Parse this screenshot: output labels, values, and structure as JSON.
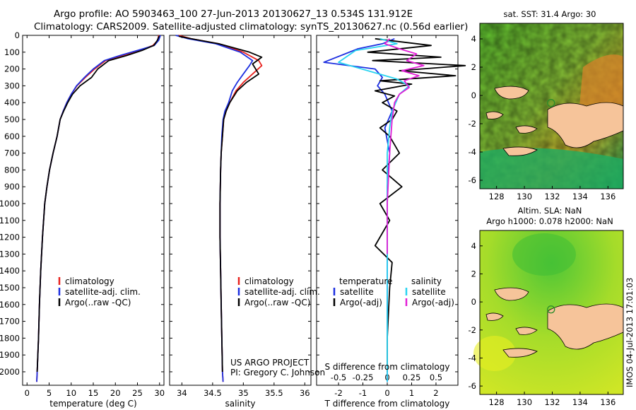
{
  "header": {
    "line1": "Argo profile: AO 5903463_100 27-Jun-2013 20130627_13 0.534S 131.912E",
    "line2": "Climatology: CARS2009. Satellite-adjusted climatology: synTS_20130627.nc (0.56d earlier)"
  },
  "credits": {
    "project": "US ARGO PROJECT",
    "pi": "PI: Gregory C. Johnson",
    "stamp": "IMOS 04-Jul-2013 17:01:03"
  },
  "colors": {
    "climatology": "#e8221e",
    "satellite": "#1d2fe0",
    "argo": "#000000",
    "sat_salinity": "#29d3f0",
    "argo_salinity": "#e21fd6",
    "land": "#f6c49a"
  },
  "chart_data": [
    {
      "type": "line",
      "id": "temperature",
      "xlabel": "temperature (deg C)",
      "xlim": [
        -1,
        31
      ],
      "xticks": [
        0,
        5,
        10,
        15,
        20,
        25,
        30
      ],
      "ylim": [
        2080,
        0
      ],
      "yticks": [
        0,
        100,
        200,
        300,
        400,
        500,
        600,
        700,
        800,
        900,
        1000,
        1100,
        1200,
        1300,
        1400,
        1500,
        1600,
        1700,
        1800,
        1900,
        2000
      ],
      "legend": [
        "climatology",
        "satellite-adj. clim.",
        "Argo(..raw -QC)"
      ],
      "series": [
        {
          "name": "climatology",
          "color": "#e8221e",
          "x": [
            29.8,
            29.6,
            28.5,
            25.5,
            21.5,
            17.8,
            15.3,
            13.2,
            11.3,
            10.0,
            9.0,
            8.2,
            7.5,
            6.8,
            5.9,
            5.1,
            4.5,
            4.0,
            3.5,
            3.1,
            2.8,
            2.6,
            2.3,
            2.2
          ],
          "y": [
            0,
            30,
            60,
            90,
            120,
            150,
            200,
            250,
            300,
            350,
            400,
            450,
            500,
            600,
            700,
            800,
            900,
            1000,
            1200,
            1400,
            1600,
            1800,
            2000,
            2060
          ]
        },
        {
          "name": "satellite-adj. clim.",
          "color": "#1d2fe0",
          "x": [
            30.2,
            29.8,
            28.8,
            25.0,
            21.0,
            17.5,
            15.0,
            13.0,
            11.2,
            10.0,
            9.0,
            8.2,
            7.5,
            6.8,
            5.9,
            5.1,
            4.5,
            4.0,
            3.5,
            3.1,
            2.8,
            2.6,
            2.3,
            2.2
          ],
          "y": [
            0,
            30,
            60,
            90,
            120,
            150,
            200,
            250,
            300,
            350,
            400,
            450,
            500,
            600,
            700,
            800,
            900,
            1000,
            1200,
            1400,
            1600,
            1800,
            2000,
            2060
          ]
        },
        {
          "name": "Argo(..raw -QC)",
          "color": "#000000",
          "x": [
            29.9,
            29.5,
            28.7,
            26.0,
            22.5,
            18.5,
            16.0,
            14.6,
            12.0,
            10.3,
            9.2,
            8.3,
            7.5,
            6.8,
            5.9,
            5.1,
            4.5,
            4.0,
            3.5,
            3.1,
            2.8,
            2.6,
            2.3
          ],
          "y": [
            5,
            30,
            60,
            90,
            120,
            150,
            200,
            250,
            300,
            350,
            400,
            450,
            500,
            600,
            700,
            800,
            900,
            1000,
            1200,
            1400,
            1600,
            1800,
            2000
          ]
        }
      ]
    },
    {
      "type": "line",
      "id": "salinity",
      "xlabel": "salinity",
      "xlim": [
        33.8,
        36.1
      ],
      "xticks": [
        34,
        34.5,
        35,
        35.5,
        36
      ],
      "ylim": [
        2080,
        0
      ],
      "legend": [
        "climatology",
        "satellite-adj. clim.",
        "Argo(..raw -QC)"
      ],
      "series": [
        {
          "name": "climatology",
          "color": "#e8221e",
          "x": [
            33.95,
            34.15,
            34.6,
            35.0,
            35.25,
            35.3,
            35.15,
            35.0,
            34.88,
            34.78,
            34.72,
            34.68,
            34.66,
            34.64,
            34.63,
            34.62,
            34.62,
            34.63,
            34.64,
            34.65,
            34.66,
            34.67
          ],
          "y": [
            0,
            20,
            50,
            100,
            150,
            180,
            230,
            280,
            330,
            400,
            450,
            500,
            600,
            700,
            800,
            1000,
            1200,
            1400,
            1600,
            1800,
            2000,
            2060
          ]
        },
        {
          "name": "satellite-adj. clim.",
          "color": "#1d2fe0",
          "x": [
            33.9,
            34.1,
            34.55,
            34.95,
            35.15,
            35.1,
            35.0,
            34.9,
            34.82,
            34.76,
            34.7,
            34.67,
            34.65,
            34.64,
            34.63,
            34.62,
            34.62,
            34.63,
            34.64,
            34.65,
            34.66,
            34.67
          ],
          "y": [
            0,
            20,
            50,
            100,
            150,
            180,
            230,
            280,
            330,
            400,
            450,
            500,
            600,
            700,
            800,
            1000,
            1200,
            1400,
            1600,
            1800,
            2000,
            2060
          ]
        },
        {
          "name": "Argo(..raw -QC)",
          "color": "#000000",
          "x": [
            33.95,
            34.15,
            34.6,
            35.1,
            35.3,
            35.15,
            35.25,
            35.05,
            34.9,
            34.78,
            34.72,
            34.68,
            34.66,
            34.64,
            34.63,
            34.62,
            34.62,
            34.63,
            34.64,
            34.65,
            34.66
          ],
          "y": [
            5,
            20,
            50,
            100,
            130,
            170,
            230,
            280,
            330,
            400,
            450,
            500,
            600,
            700,
            800,
            1000,
            1200,
            1400,
            1600,
            1800,
            2000
          ]
        }
      ]
    },
    {
      "type": "line",
      "id": "difference",
      "xlabel": "T difference from climatology",
      "top_label": "S difference from climatology",
      "xlim": [
        -2.9,
        2.9
      ],
      "xticks": [
        -2,
        -1,
        0,
        1,
        2
      ],
      "top_ticks": [
        "-0.5",
        "-0.25",
        "0",
        "0.25",
        "0.5"
      ],
      "top_tick_pos": [
        -2,
        -1,
        0,
        1,
        2
      ],
      "ylim": [
        2080,
        0
      ],
      "legend_titles": [
        "temperature",
        "salinity"
      ],
      "legend": [
        "satellite",
        "Argo(-adj)",
        "satellite",
        "Argo(-adj)"
      ],
      "series": [
        {
          "name": "temperature satellite",
          "color": "#1d2fe0",
          "x": [
            0.3,
            -0.2,
            -1.2,
            -2.6,
            -0.5,
            -0.2,
            -0.4,
            -0.1,
            0.2,
            -0.1,
            0.1,
            0,
            0,
            0,
            0
          ],
          "y": [
            20,
            50,
            80,
            160,
            200,
            250,
            300,
            350,
            450,
            550,
            700,
            900,
            1200,
            1600,
            2060
          ]
        },
        {
          "name": "temperature Argo(-adj)",
          "color": "#000000",
          "x": [
            -0.5,
            1.8,
            -0.8,
            2.2,
            -0.6,
            3.2,
            0.5,
            2.8,
            -0.3,
            1.0,
            -0.5,
            0.3,
            -0.2,
            0.4,
            0.2,
            -0.3,
            0.1,
            0.5,
            -0.2,
            0.6,
            -0.3,
            0.1,
            -0.5,
            0.2,
            0.1,
            0,
            0
          ],
          "y": [
            20,
            60,
            100,
            130,
            150,
            180,
            210,
            240,
            270,
            290,
            330,
            360,
            400,
            450,
            500,
            550,
            600,
            700,
            800,
            900,
            1000,
            1100,
            1250,
            1350,
            1500,
            1800,
            2000
          ]
        },
        {
          "name": "salinity satellite",
          "color": "#29d3f0",
          "x": [
            -0.3,
            0.4,
            -1.3,
            -2.0,
            -0.8,
            0.4,
            0.9,
            0.5,
            0.2,
            0.1,
            0,
            0,
            0,
            0
          ],
          "y": [
            20,
            50,
            90,
            160,
            210,
            260,
            300,
            350,
            450,
            550,
            700,
            1000,
            1500,
            2060
          ]
        },
        {
          "name": "salinity Argo(-adj)",
          "color": "#e21fd6",
          "x": [
            0.1,
            -0.1,
            0.5,
            1.2,
            0.8,
            1.5,
            0.6,
            1.3,
            0.7,
            0.9,
            0.5,
            0.3,
            0.2,
            0.1,
            0,
            0
          ],
          "y": [
            20,
            50,
            80,
            110,
            150,
            180,
            210,
            240,
            270,
            310,
            350,
            400,
            500,
            700,
            1000,
            1300
          ]
        }
      ]
    },
    {
      "type": "heatmap",
      "id": "sst_map",
      "title": "sat. SST: 31.4  Argo: 30",
      "xticks": [
        128,
        130,
        132,
        134,
        136
      ],
      "yticks": [
        4,
        2,
        0,
        -2,
        -4,
        -6
      ],
      "xlim": [
        126.8,
        137.1
      ],
      "ylim": [
        -6.6,
        5.1
      ],
      "argo_position": [
        131.912,
        -0.534
      ]
    },
    {
      "type": "heatmap",
      "id": "sla_map",
      "title": "Altim. SLA: NaN",
      "title2": "Argo h1000: 0.078 h2000: NaN",
      "xticks": [
        128,
        130,
        132,
        134,
        136
      ],
      "yticks": [
        4,
        2,
        0,
        -2,
        -4,
        -6
      ],
      "xlim": [
        126.8,
        137.1
      ],
      "ylim": [
        -6.6,
        5.1
      ],
      "argo_position": [
        131.912,
        -0.534
      ]
    }
  ]
}
